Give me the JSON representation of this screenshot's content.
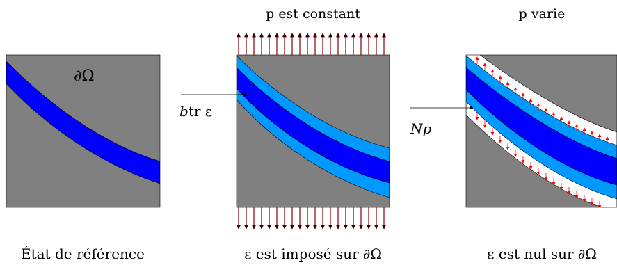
{
  "panels": [
    {
      "title": "",
      "boundary_label": "∂Ω",
      "caption": "État de référence"
    },
    {
      "title": "p est constant",
      "caption": "ε est imposé sur ∂Ω"
    },
    {
      "title": "p varie",
      "caption": "ε est nul sur ∂Ω"
    }
  ],
  "arrows": [
    {
      "label_var": "b",
      "label_rest": "tr ε"
    },
    {
      "label_var": "Np",
      "label_rest": ""
    }
  ],
  "colors": {
    "background": "#808080",
    "band_core": "#0000ff",
    "band_layer": "#0099ff",
    "gap": "#ffffff",
    "force_arrow": "#8b0000",
    "small_arrow": "#ff0000"
  }
}
